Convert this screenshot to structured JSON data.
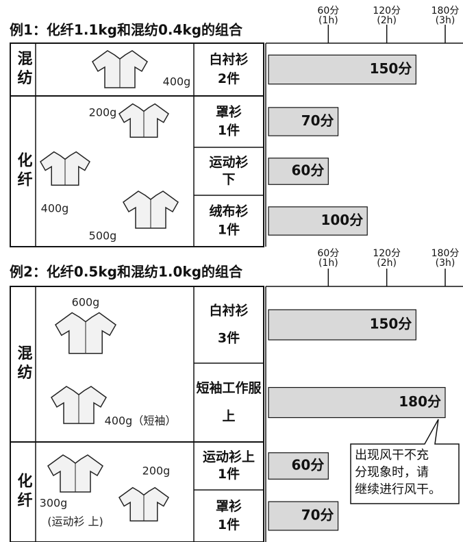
{
  "bar_color": "#d9d9d9",
  "examples": [
    {
      "title": "例1：化纤1.1kg和混纺0.4kg的组合",
      "xlim": [
        0,
        180
      ],
      "ticks": [
        {
          "value": 60,
          "label": "60分",
          "hours": "(1h)"
        },
        {
          "value": 120,
          "label": "120分",
          "hours": "(2h)"
        },
        {
          "value": 180,
          "label": "180分",
          "hours": "(3h)"
        }
      ],
      "groups": [
        {
          "label": "混纺",
          "weights": [
            "400g"
          ],
          "items": [
            {
              "name": "白衬衫",
              "count": "2件",
              "value": 150,
              "value_label": "150分"
            }
          ]
        },
        {
          "label": "化纤",
          "weights": [
            "200g",
            "400g",
            "500g"
          ],
          "items": [
            {
              "name": "罩衫",
              "count": "1件",
              "value": 70,
              "value_label": "70分"
            },
            {
              "name": "运动衫",
              "count": "下",
              "value": 60,
              "value_label": "60分"
            },
            {
              "name": "绒布衫",
              "count": "1件",
              "value": 100,
              "value_label": "100分"
            }
          ]
        }
      ]
    },
    {
      "title": "例2：化纤0.5kg和混纺1.0kg的组合",
      "xlim": [
        0,
        180
      ],
      "ticks": [
        {
          "value": 60,
          "label": "60分",
          "hours": "(1h)"
        },
        {
          "value": 120,
          "label": "120分",
          "hours": "(2h)"
        },
        {
          "value": 180,
          "label": "180分",
          "hours": "(3h)"
        }
      ],
      "groups": [
        {
          "label": "混纺",
          "weights": [
            "600g",
            "400g（短袖）"
          ],
          "items": [
            {
              "name": "白衬衫",
              "count": "3件",
              "value": 150,
              "value_label": "150分"
            },
            {
              "name": "短袖工作服",
              "count": "上",
              "value": 180,
              "value_label": "180分"
            }
          ]
        },
        {
          "label": "化纤",
          "weights": [
            "200g",
            "300g",
            "(运动衫 上)"
          ],
          "items": [
            {
              "name": "运动衫上",
              "count": "1件",
              "value": 60,
              "value_label": "60分"
            },
            {
              "name": "罩衫",
              "count": "1件",
              "value": 70,
              "value_label": "70分"
            }
          ]
        }
      ],
      "note": [
        "出现风干不充",
        "分现象时，请",
        "继续进行风干。"
      ]
    }
  ]
}
